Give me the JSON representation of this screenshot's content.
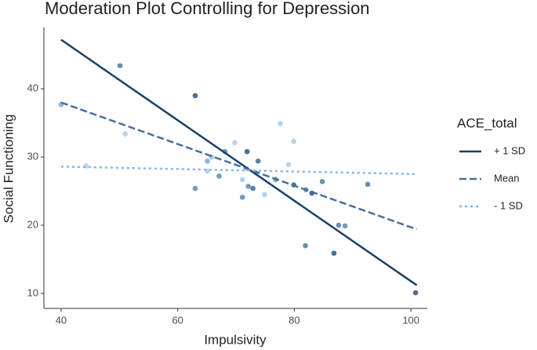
{
  "chart_data": {
    "type": "line",
    "title": "Moderation Plot Controlling for Depression",
    "x_label": "Impulsivity",
    "y_label": "Social Functioning",
    "legend_title": "ACE_total",
    "legend": "right",
    "x": [
      40,
      101
    ],
    "series": [
      {
        "name": "+ 1 SD",
        "color": "#1b3f66",
        "dash": "solid",
        "values": [
          47.2,
          11.2
        ]
      },
      {
        "name": "Mean",
        "color": "#43719f",
        "dash": "dashed",
        "values": [
          38.0,
          19.4
        ]
      },
      {
        "name": "- 1 SD",
        "color": "#87b5e0",
        "dash": "dotted",
        "values": [
          28.6,
          27.5
        ]
      }
    ],
    "points": {
      "x": [
        40,
        50.1,
        63,
        63,
        51,
        44.3,
        65.1,
        65.8,
        65.1,
        67.1,
        68.1,
        69.8,
        71.9,
        73.8,
        71.8,
        71.1,
        72.1,
        72.9,
        71.1,
        74.9,
        73.4,
        77.6,
        79.9,
        79,
        76.8,
        79.9,
        82,
        83,
        84.8,
        81.9,
        86.8,
        87.6,
        88.7,
        92.6,
        100.8
      ],
      "y": [
        37.7,
        43.4,
        39.0,
        25.4,
        33.4,
        28.7,
        29.4,
        30.0,
        27.9,
        27.2,
        30.8,
        32.1,
        30.8,
        29.4,
        28.3,
        26.7,
        25.7,
        25.4,
        24.1,
        24.5,
        27.7,
        34.9,
        32.3,
        28.9,
        26.7,
        25.9,
        25.2,
        24.7,
        26.4,
        17.0,
        15.9,
        20.0,
        19.9,
        26.0,
        10.1
      ],
      "colors": [
        "#7ea7d0",
        "#4f7aa6",
        "#2c5580",
        "#5a86b2",
        "#a7cbec",
        "#a7cbec",
        "#7ea7d0",
        "#9cc0e2",
        "#a7cbec",
        "#5a86b2",
        "#5a86b2",
        "#a7cbec",
        "#2c5580",
        "#3f6a96",
        "#a7cbec",
        "#a7cbec",
        "#5a86b2",
        "#3f6a96",
        "#5a86b2",
        "#a7cbec",
        "#7ea7d0",
        "#a7cbec",
        "#a7cbec",
        "#a7cbec",
        "#5a86b2",
        "#2c5580",
        "#5a86b2",
        "#2c5580",
        "#4f7aa6",
        "#4f7aa6",
        "#2c5580",
        "#4f7aa6",
        "#5a86b2",
        "#4f7aa6",
        "#2c5580"
      ]
    },
    "xlim": [
      37.05,
      102.8
    ],
    "ylim": [
      7.8,
      49.0
    ],
    "xticks": [
      40,
      60,
      80,
      100
    ],
    "yticks": [
      10,
      20,
      30,
      40
    ]
  }
}
